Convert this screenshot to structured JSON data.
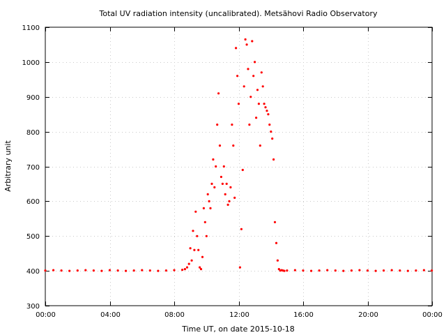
{
  "chart_data": {
    "type": "scatter",
    "title": "Total UV radiation intensity (uncalibrated). Metsähovi Radio Observatory",
    "xlabel": "Time UT, on date 2015-10-18",
    "ylabel": "Arbitrary unit",
    "xlim": [
      "00:00",
      "24:00"
    ],
    "ylim": [
      300,
      1100
    ],
    "x_ticks": [
      "00:00",
      "04:00",
      "08:00",
      "12:00",
      "16:00",
      "20:00",
      "00:00"
    ],
    "y_ticks": [
      300,
      400,
      500,
      600,
      700,
      800,
      900,
      1000,
      1100
    ],
    "grid": true,
    "marker_color": "#ff0000",
    "series": [
      {
        "x": [
          "00:00",
          "00:30",
          "01:00",
          "01:30",
          "02:00",
          "02:30",
          "03:00",
          "03:30",
          "04:00",
          "04:30",
          "05:00",
          "05:30",
          "06:00",
          "06:30",
          "07:00",
          "07:30",
          "08:00",
          "08:30",
          "08:40",
          "08:48",
          "08:55",
          "09:00",
          "09:05",
          "09:10",
          "09:15",
          "09:20",
          "09:25",
          "09:30",
          "09:35",
          "09:40",
          "09:45",
          "09:50",
          "09:55",
          "10:00",
          "10:05",
          "10:10",
          "10:15",
          "10:20",
          "10:25",
          "10:30",
          "10:35",
          "10:40",
          "10:45",
          "10:50",
          "10:55",
          "11:00",
          "11:05",
          "11:10",
          "11:15",
          "11:20",
          "11:25",
          "11:30",
          "11:35",
          "11:40",
          "11:45",
          "11:50",
          "11:55",
          "12:00",
          "12:05",
          "12:10",
          "12:15",
          "12:20",
          "12:25",
          "12:30",
          "12:35",
          "12:40",
          "12:45",
          "12:50",
          "12:55",
          "13:00",
          "13:05",
          "13:10",
          "13:15",
          "13:20",
          "13:25",
          "13:30",
          "13:35",
          "13:40",
          "13:45",
          "13:50",
          "13:55",
          "14:00",
          "14:05",
          "14:10",
          "14:15",
          "14:20",
          "14:25",
          "14:30",
          "14:35",
          "14:40",
          "14:45",
          "14:50",
          "15:00",
          "15:30",
          "16:00",
          "16:30",
          "17:00",
          "17:30",
          "18:00",
          "18:30",
          "19:00",
          "19:30",
          "20:00",
          "20:30",
          "21:00",
          "21:30",
          "22:00",
          "22:30",
          "23:00",
          "23:30",
          "23:59"
        ],
        "y": [
          401,
          402,
          401,
          400,
          401,
          402,
          401,
          400,
          402,
          401,
          400,
          401,
          402,
          401,
          400,
          401,
          402,
          403,
          405,
          410,
          420,
          465,
          430,
          515,
          460,
          570,
          500,
          460,
          410,
          405,
          440,
          580,
          540,
          500,
          620,
          600,
          580,
          650,
          720,
          640,
          700,
          820,
          910,
          760,
          670,
          650,
          700,
          620,
          650,
          590,
          600,
          640,
          820,
          760,
          610,
          1040,
          960,
          880,
          410,
          520,
          690,
          930,
          1065,
          1050,
          980,
          820,
          900,
          1060,
          960,
          1000,
          840,
          920,
          880,
          760,
          970,
          930,
          880,
          870,
          860,
          850,
          820,
          800,
          780,
          720,
          540,
          480,
          430,
          405,
          401,
          402,
          401,
          400,
          401,
          402,
          401,
          400,
          401,
          402,
          401,
          400,
          401,
          402,
          401,
          400,
          401,
          402,
          401,
          400,
          401,
          402,
          401
        ]
      }
    ]
  }
}
